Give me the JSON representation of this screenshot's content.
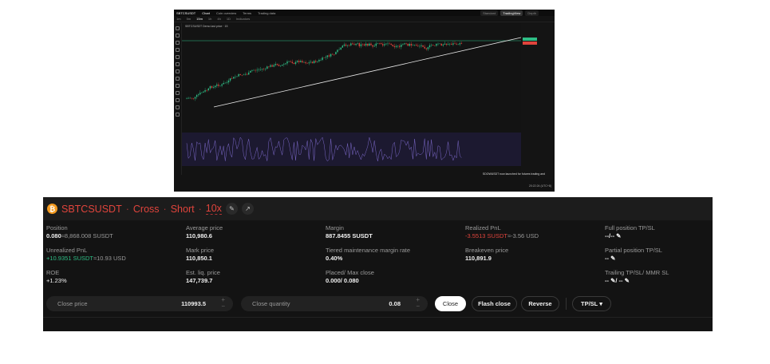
{
  "chart": {
    "symbol": "SBTCSUSDT",
    "tabs": [
      "Chart",
      "Coin overview",
      "Terms",
      "Trading data"
    ],
    "active_tab": "Chart",
    "views": [
      "Standard",
      "TradingView",
      "Depth"
    ],
    "active_view": "TradingView",
    "timeframes": [
      "1m",
      "5m",
      "15m",
      "1h",
      "4h",
      "1D"
    ],
    "indicators_label": "Indicators",
    "legend": "SBTCSUSDT Demo last price · 15",
    "news": "SDOWUSDT now launched for futures trading and",
    "clock": "20:22:24 (UTC+8)",
    "colors": {
      "up": "#2ebd85",
      "down": "#e0443c",
      "rsi": "#7b68c8",
      "trend": "#e8e8e8"
    }
  },
  "position": {
    "symbol": "SBTCSUSDT",
    "margin_mode": "Cross",
    "side": "Short",
    "leverage": "10x",
    "coin_icon": "bitcoin-icon",
    "fields": {
      "position_label": "Position",
      "position_value": "0.080",
      "position_sub": "≈8,868.008 SUSDT",
      "avg_label": "Average price",
      "avg_value": "110,980.6",
      "margin_label": "Margin",
      "margin_value": "887.8455 SUSDT",
      "rpnl_label": "Realized PnL",
      "rpnl_value": "-3.5513 SUSDT",
      "rpnl_sub": "≈-3.56 USD",
      "full_tpsl_label": "Full position TP/SL",
      "full_tpsl_value": "--/--",
      "upnl_label": "Unrealized PnL",
      "upnl_value": "+10.9351 SUSDT",
      "upnl_sub": "≈10.93 USD",
      "mark_label": "Mark price",
      "mark_value": "110,850.1",
      "tmmr_label": "Tiered maintenance margin rate",
      "tmmr_value": "0.40%",
      "be_label": "Breakeven price",
      "be_value": "110,891.9",
      "partial_label": "Partial position TP/SL",
      "partial_value": "--",
      "roe_label": "ROE",
      "roe_value": "+1.23%",
      "liq_label": "Est. liq. price",
      "liq_value": "147,739.7",
      "placed_label": "Placed/ Max close",
      "placed_value": "0.000/ 0.080",
      "trailing_label": "Trailing TP/SL/ MMR SL",
      "trailing_value": "-- ✎/ --"
    },
    "close_price_label": "Close price",
    "close_price_value": "110993.5",
    "close_qty_label": "Close quantity",
    "close_qty_value": "0.08",
    "buttons": {
      "close": "Close",
      "flash": "Flash close",
      "reverse": "Reverse",
      "tpsl": "TP/SL ▾"
    }
  }
}
